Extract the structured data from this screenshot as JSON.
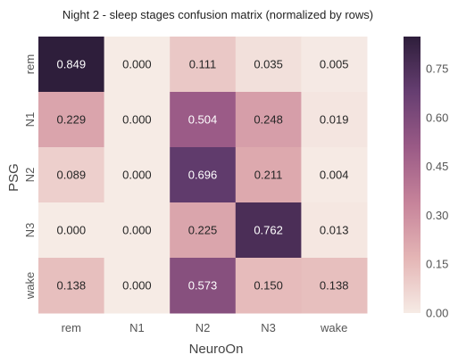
{
  "chart_data": {
    "type": "heatmap",
    "title": "Night 2 - sleep stages confusion matrix (normalized by rows)",
    "xlabel": "NeuroOn",
    "ylabel": "PSG",
    "x_categories": [
      "rem",
      "N1",
      "N2",
      "N3",
      "wake"
    ],
    "y_categories": [
      "rem",
      "N1",
      "N2",
      "N3",
      "wake"
    ],
    "values": [
      [
        0.849,
        0.0,
        0.111,
        0.035,
        0.005
      ],
      [
        0.229,
        0.0,
        0.504,
        0.248,
        0.019
      ],
      [
        0.089,
        0.0,
        0.696,
        0.211,
        0.004
      ],
      [
        0.0,
        0.0,
        0.225,
        0.762,
        0.013
      ],
      [
        0.138,
        0.0,
        0.573,
        0.15,
        0.138
      ]
    ],
    "value_labels": [
      [
        "0.849",
        "0.000",
        "0.111",
        "0.035",
        "0.005"
      ],
      [
        "0.229",
        "0.000",
        "0.504",
        "0.248",
        "0.019"
      ],
      [
        "0.089",
        "0.000",
        "0.696",
        "0.211",
        "0.004"
      ],
      [
        "0.000",
        "0.000",
        "0.225",
        "0.762",
        "0.013"
      ],
      [
        "0.138",
        "0.000",
        "0.573",
        "0.150",
        "0.138"
      ]
    ],
    "colorbar": {
      "range": [
        0,
        0.849
      ],
      "ticks": [
        0.0,
        0.15,
        0.3,
        0.45,
        0.6,
        0.75
      ],
      "tick_labels": [
        "0.00",
        "0.15",
        "0.30",
        "0.45",
        "0.60",
        "0.75"
      ],
      "colors": [
        "#f6ebe5",
        "#e4b5b5",
        "#c6839a",
        "#9a5a86",
        "#663e71",
        "#2e1e3b"
      ]
    },
    "grid": false
  }
}
